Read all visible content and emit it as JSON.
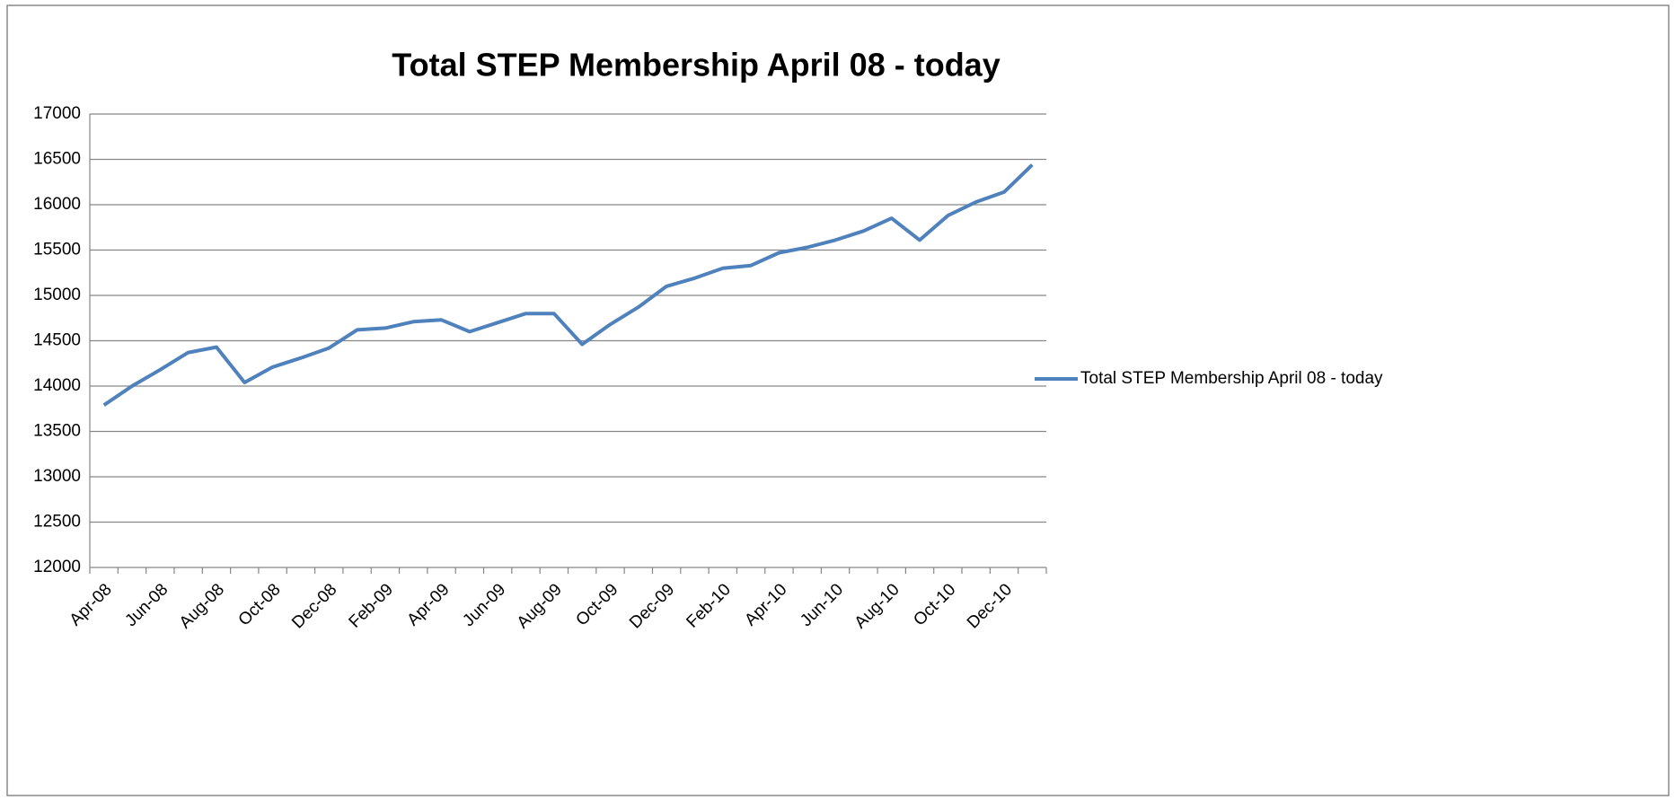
{
  "chart_data": {
    "type": "line",
    "title": "Total STEP Membership April 08 - today",
    "categories": [
      "Apr-08",
      null,
      "Jun-08",
      null,
      "Aug-08",
      null,
      "Oct-08",
      null,
      "Dec-08",
      null,
      "Feb-09",
      null,
      "Apr-09",
      null,
      "Jun-09",
      null,
      "Aug-09",
      null,
      "Oct-09",
      null,
      "Dec-09",
      null,
      "Feb-10",
      null,
      "Apr-10",
      null,
      "Jun-10",
      null,
      "Aug-10",
      null,
      "Oct-10",
      null,
      "Dec-10",
      null
    ],
    "series": [
      {
        "name": "Total STEP Membership April 08 - today",
        "color": "#4f81bd",
        "values": [
          13790,
          14000,
          14180,
          14370,
          14430,
          14040,
          14210,
          14310,
          14420,
          14620,
          14640,
          14710,
          14730,
          14600,
          14700,
          14800,
          14800,
          14460,
          14680,
          14870,
          15100,
          15190,
          15300,
          15330,
          15470,
          15530,
          15610,
          15710,
          15850,
          15610,
          15880,
          16030,
          16140,
          16440
        ]
      }
    ],
    "ylim": [
      12000,
      17000
    ],
    "yticks": [
      12000,
      12500,
      13000,
      13500,
      14000,
      14500,
      15000,
      15500,
      16000,
      16500,
      17000
    ],
    "grid": true,
    "legend": "right"
  }
}
